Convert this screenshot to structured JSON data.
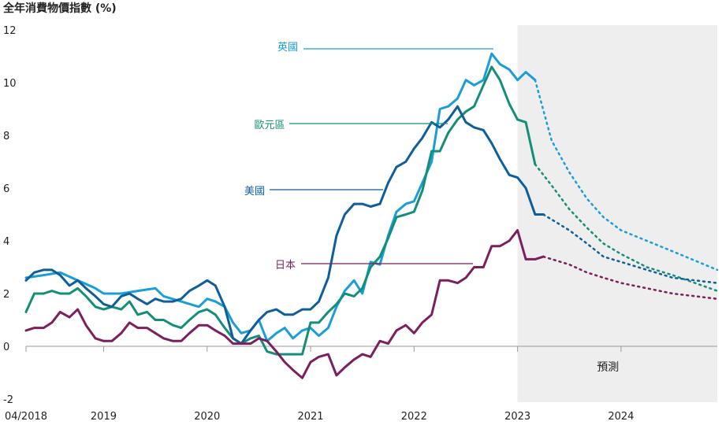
{
  "title": "全年消費物價指數 (%)",
  "chart_data": {
    "type": "line",
    "title": "全年消費物價指數 (%)",
    "ylim": [
      -2,
      12
    ],
    "yticks": [
      12,
      10,
      8,
      6,
      4,
      2,
      0,
      -2
    ],
    "xticks": [
      {
        "label": "04/2018",
        "t": 2018.25
      },
      {
        "label": "2019",
        "t": 2019.0
      },
      {
        "label": "2020",
        "t": 2020.0
      },
      {
        "label": "2021",
        "t": 2021.0
      },
      {
        "label": "2022",
        "t": 2022.0
      },
      {
        "label": "2023",
        "t": 2023.0
      },
      {
        "label": "2024",
        "t": 2024.0
      }
    ],
    "xlim": [
      2018.25,
      2024.93
    ],
    "forecast": {
      "label": "預測",
      "start": 2023.0,
      "end": 2024.93
    },
    "series": [
      {
        "name": "英國",
        "color": "#1a9dd9",
        "actual": [
          [
            2018.25,
            2.6
          ],
          [
            2018.42,
            2.7
          ],
          [
            2018.58,
            2.8
          ],
          [
            2018.75,
            2.5
          ],
          [
            2018.92,
            2.2
          ],
          [
            2019.0,
            2.0
          ],
          [
            2019.17,
            2.0
          ],
          [
            2019.33,
            2.1
          ],
          [
            2019.5,
            2.2
          ],
          [
            2019.58,
            1.9
          ],
          [
            2019.75,
            1.7
          ],
          [
            2019.92,
            1.5
          ],
          [
            2020.0,
            1.8
          ],
          [
            2020.08,
            1.7
          ],
          [
            2020.17,
            1.5
          ],
          [
            2020.25,
            0.9
          ],
          [
            2020.33,
            0.5
          ],
          [
            2020.42,
            0.6
          ],
          [
            2020.5,
            1.0
          ],
          [
            2020.58,
            0.2
          ],
          [
            2020.67,
            0.5
          ],
          [
            2020.75,
            0.7
          ],
          [
            2020.83,
            0.3
          ],
          [
            2020.92,
            0.6
          ],
          [
            2021.0,
            0.7
          ],
          [
            2021.08,
            0.4
          ],
          [
            2021.17,
            0.7
          ],
          [
            2021.25,
            1.5
          ],
          [
            2021.33,
            2.1
          ],
          [
            2021.42,
            2.5
          ],
          [
            2021.5,
            2.0
          ],
          [
            2021.58,
            3.2
          ],
          [
            2021.67,
            3.1
          ],
          [
            2021.75,
            4.2
          ],
          [
            2021.83,
            5.1
          ],
          [
            2021.92,
            5.4
          ],
          [
            2022.0,
            5.5
          ],
          [
            2022.08,
            6.2
          ],
          [
            2022.17,
            7.0
          ],
          [
            2022.25,
            9.0
          ],
          [
            2022.33,
            9.1
          ],
          [
            2022.42,
            9.4
          ],
          [
            2022.5,
            10.1
          ],
          [
            2022.58,
            9.9
          ],
          [
            2022.67,
            10.1
          ],
          [
            2022.75,
            11.1
          ],
          [
            2022.83,
            10.7
          ],
          [
            2022.92,
            10.5
          ],
          [
            2023.0,
            10.1
          ],
          [
            2023.08,
            10.4
          ],
          [
            2023.17,
            10.1
          ]
        ],
        "forecast": [
          [
            2023.17,
            10.1
          ],
          [
            2023.33,
            7.8
          ],
          [
            2023.5,
            6.6
          ],
          [
            2023.67,
            5.6
          ],
          [
            2023.83,
            4.9
          ],
          [
            2024.0,
            4.4
          ],
          [
            2024.25,
            4.0
          ],
          [
            2024.5,
            3.6
          ],
          [
            2024.93,
            2.9
          ]
        ]
      },
      {
        "name": "歐元區",
        "color": "#148f77",
        "actual": [
          [
            2018.25,
            1.3
          ],
          [
            2018.33,
            2.0
          ],
          [
            2018.42,
            2.0
          ],
          [
            2018.5,
            2.1
          ],
          [
            2018.58,
            2.0
          ],
          [
            2018.67,
            2.0
          ],
          [
            2018.75,
            2.2
          ],
          [
            2018.83,
            1.9
          ],
          [
            2018.92,
            1.5
          ],
          [
            2019.0,
            1.4
          ],
          [
            2019.08,
            1.5
          ],
          [
            2019.17,
            1.4
          ],
          [
            2019.25,
            1.7
          ],
          [
            2019.33,
            1.2
          ],
          [
            2019.42,
            1.3
          ],
          [
            2019.5,
            1.0
          ],
          [
            2019.58,
            1.0
          ],
          [
            2019.67,
            0.8
          ],
          [
            2019.75,
            0.7
          ],
          [
            2019.83,
            1.0
          ],
          [
            2019.92,
            1.3
          ],
          [
            2020.0,
            1.4
          ],
          [
            2020.08,
            1.2
          ],
          [
            2020.17,
            0.7
          ],
          [
            2020.25,
            0.3
          ],
          [
            2020.33,
            0.1
          ],
          [
            2020.42,
            0.3
          ],
          [
            2020.5,
            0.4
          ],
          [
            2020.58,
            -0.2
          ],
          [
            2020.67,
            -0.3
          ],
          [
            2020.75,
            -0.3
          ],
          [
            2020.83,
            -0.3
          ],
          [
            2020.92,
            -0.3
          ],
          [
            2021.0,
            0.9
          ],
          [
            2021.08,
            0.9
          ],
          [
            2021.17,
            1.3
          ],
          [
            2021.25,
            1.6
          ],
          [
            2021.33,
            2.0
          ],
          [
            2021.42,
            1.9
          ],
          [
            2021.5,
            2.2
          ],
          [
            2021.58,
            3.0
          ],
          [
            2021.67,
            3.4
          ],
          [
            2021.75,
            4.1
          ],
          [
            2021.83,
            4.9
          ],
          [
            2021.92,
            5.0
          ],
          [
            2022.0,
            5.1
          ],
          [
            2022.08,
            5.9
          ],
          [
            2022.17,
            7.4
          ],
          [
            2022.25,
            7.4
          ],
          [
            2022.33,
            8.1
          ],
          [
            2022.42,
            8.6
          ],
          [
            2022.5,
            8.9
          ],
          [
            2022.58,
            9.1
          ],
          [
            2022.67,
            9.9
          ],
          [
            2022.75,
            10.6
          ],
          [
            2022.83,
            10.1
          ],
          [
            2022.92,
            9.2
          ],
          [
            2023.0,
            8.6
          ],
          [
            2023.08,
            8.5
          ],
          [
            2023.17,
            6.9
          ]
        ],
        "forecast": [
          [
            2023.17,
            6.9
          ],
          [
            2023.33,
            6.1
          ],
          [
            2023.5,
            5.2
          ],
          [
            2023.67,
            4.5
          ],
          [
            2023.83,
            3.9
          ],
          [
            2024.0,
            3.5
          ],
          [
            2024.25,
            3.0
          ],
          [
            2024.5,
            2.7
          ],
          [
            2024.93,
            2.1
          ]
        ]
      },
      {
        "name": "美國",
        "color": "#0f5e9c",
        "actual": [
          [
            2018.25,
            2.5
          ],
          [
            2018.33,
            2.8
          ],
          [
            2018.42,
            2.9
          ],
          [
            2018.5,
            2.9
          ],
          [
            2018.58,
            2.7
          ],
          [
            2018.67,
            2.3
          ],
          [
            2018.75,
            2.5
          ],
          [
            2018.83,
            2.2
          ],
          [
            2018.92,
            1.9
          ],
          [
            2019.0,
            1.6
          ],
          [
            2019.08,
            1.5
          ],
          [
            2019.17,
            1.9
          ],
          [
            2019.25,
            2.0
          ],
          [
            2019.33,
            1.8
          ],
          [
            2019.42,
            1.6
          ],
          [
            2019.5,
            1.8
          ],
          [
            2019.58,
            1.7
          ],
          [
            2019.67,
            1.7
          ],
          [
            2019.75,
            1.8
          ],
          [
            2019.83,
            2.1
          ],
          [
            2019.92,
            2.3
          ],
          [
            2020.0,
            2.5
          ],
          [
            2020.08,
            2.3
          ],
          [
            2020.17,
            1.5
          ],
          [
            2020.25,
            0.3
          ],
          [
            2020.33,
            0.1
          ],
          [
            2020.42,
            0.6
          ],
          [
            2020.5,
            1.0
          ],
          [
            2020.58,
            1.3
          ],
          [
            2020.67,
            1.4
          ],
          [
            2020.75,
            1.2
          ],
          [
            2020.83,
            1.2
          ],
          [
            2020.92,
            1.4
          ],
          [
            2021.0,
            1.4
          ],
          [
            2021.08,
            1.7
          ],
          [
            2021.17,
            2.6
          ],
          [
            2021.25,
            4.2
          ],
          [
            2021.33,
            5.0
          ],
          [
            2021.42,
            5.4
          ],
          [
            2021.5,
            5.4
          ],
          [
            2021.58,
            5.3
          ],
          [
            2021.67,
            5.4
          ],
          [
            2021.75,
            6.2
          ],
          [
            2021.83,
            6.8
          ],
          [
            2021.92,
            7.0
          ],
          [
            2022.0,
            7.5
          ],
          [
            2022.08,
            7.9
          ],
          [
            2022.17,
            8.5
          ],
          [
            2022.25,
            8.3
          ],
          [
            2022.33,
            8.6
          ],
          [
            2022.42,
            9.1
          ],
          [
            2022.5,
            8.5
          ],
          [
            2022.58,
            8.3
          ],
          [
            2022.67,
            8.2
          ],
          [
            2022.75,
            7.7
          ],
          [
            2022.83,
            7.1
          ],
          [
            2022.92,
            6.5
          ],
          [
            2023.0,
            6.4
          ],
          [
            2023.08,
            6.0
          ],
          [
            2023.17,
            5.0
          ],
          [
            2023.25,
            5.0
          ]
        ],
        "forecast": [
          [
            2023.25,
            5.0
          ],
          [
            2023.5,
            4.4
          ],
          [
            2023.67,
            3.9
          ],
          [
            2023.83,
            3.4
          ],
          [
            2024.0,
            3.2
          ],
          [
            2024.25,
            2.9
          ],
          [
            2024.5,
            2.6
          ],
          [
            2024.93,
            2.4
          ]
        ]
      },
      {
        "name": "日本",
        "color": "#7b1f5e",
        "actual": [
          [
            2018.25,
            0.6
          ],
          [
            2018.33,
            0.7
          ],
          [
            2018.42,
            0.7
          ],
          [
            2018.5,
            0.9
          ],
          [
            2018.58,
            1.3
          ],
          [
            2018.67,
            1.1
          ],
          [
            2018.75,
            1.4
          ],
          [
            2018.83,
            0.8
          ],
          [
            2018.92,
            0.3
          ],
          [
            2019.0,
            0.2
          ],
          [
            2019.08,
            0.2
          ],
          [
            2019.17,
            0.5
          ],
          [
            2019.25,
            0.9
          ],
          [
            2019.33,
            0.7
          ],
          [
            2019.42,
            0.7
          ],
          [
            2019.5,
            0.5
          ],
          [
            2019.58,
            0.3
          ],
          [
            2019.67,
            0.2
          ],
          [
            2019.75,
            0.2
          ],
          [
            2019.83,
            0.5
          ],
          [
            2019.92,
            0.8
          ],
          [
            2020.0,
            0.8
          ],
          [
            2020.08,
            0.6
          ],
          [
            2020.17,
            0.4
          ],
          [
            2020.25,
            0.1
          ],
          [
            2020.33,
            0.1
          ],
          [
            2020.42,
            0.1
          ],
          [
            2020.5,
            0.3
          ],
          [
            2020.58,
            0.2
          ],
          [
            2020.67,
            -0.2
          ],
          [
            2020.75,
            -0.6
          ],
          [
            2020.83,
            -0.9
          ],
          [
            2020.92,
            -1.2
          ],
          [
            2021.0,
            -0.6
          ],
          [
            2021.08,
            -0.4
          ],
          [
            2021.17,
            -0.3
          ],
          [
            2021.25,
            -1.1
          ],
          [
            2021.33,
            -0.8
          ],
          [
            2021.42,
            -0.5
          ],
          [
            2021.5,
            -0.3
          ],
          [
            2021.58,
            -0.4
          ],
          [
            2021.67,
            0.2
          ],
          [
            2021.75,
            0.1
          ],
          [
            2021.83,
            0.6
          ],
          [
            2021.92,
            0.8
          ],
          [
            2022.0,
            0.5
          ],
          [
            2022.08,
            0.9
          ],
          [
            2022.17,
            1.2
          ],
          [
            2022.25,
            2.5
          ],
          [
            2022.33,
            2.5
          ],
          [
            2022.42,
            2.4
          ],
          [
            2022.5,
            2.6
          ],
          [
            2022.58,
            3.0
          ],
          [
            2022.67,
            3.0
          ],
          [
            2022.75,
            3.8
          ],
          [
            2022.83,
            3.8
          ],
          [
            2022.92,
            4.0
          ],
          [
            2023.0,
            4.4
          ],
          [
            2023.08,
            3.3
          ],
          [
            2023.17,
            3.3
          ],
          [
            2023.25,
            3.4
          ]
        ],
        "forecast": [
          [
            2023.25,
            3.4
          ],
          [
            2023.5,
            3.1
          ],
          [
            2023.67,
            2.8
          ],
          [
            2023.83,
            2.6
          ],
          [
            2024.0,
            2.4
          ],
          [
            2024.25,
            2.2
          ],
          [
            2024.5,
            2.0
          ],
          [
            2024.93,
            1.8
          ]
        ]
      }
    ]
  }
}
